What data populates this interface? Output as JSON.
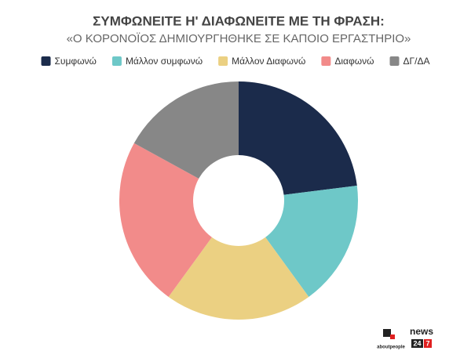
{
  "chart_data": {
    "type": "donut",
    "title": "ΣΥΜΦΩΝΕΙΤΕ Η' ΔΙΑΦΩΝΕΙΤΕ ΜΕ ΤΗ ΦΡΑΣΗ:",
    "subtitle": "«Ο ΚΟΡΟΝΟΪΟΣ ΔΗΜΙΟΥΡΓΗΘΗΚΕ ΣΕ ΚΑΠΟΙΟ ΕΡΓΑΣΤΗΡΙΟ»",
    "categories": [
      "Συμφωνώ",
      "Μάλλον συμφωνώ",
      "Μάλλον Διαφωνώ",
      "Διαφωνώ",
      "ΔΓ/ΔΑ"
    ],
    "values": [
      23,
      17,
      20,
      23,
      17
    ],
    "colors": [
      "#1b2b4b",
      "#6ec8c8",
      "#ebd082",
      "#f28b8a",
      "#878787"
    ],
    "legend": "top"
  },
  "branding": {
    "left": "aboutpeople",
    "right": [
      "news",
      "24",
      "7"
    ]
  }
}
